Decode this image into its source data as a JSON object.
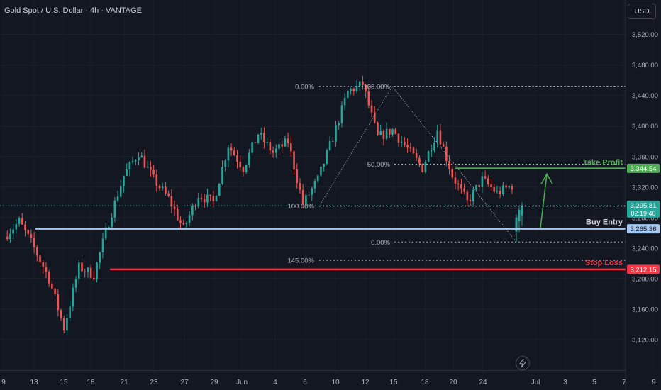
{
  "header": {
    "symbol_title": "Gold Spot / U.S. Dollar · 4h · VANTAGE",
    "currency_label": "USD"
  },
  "colors": {
    "background": "#131722",
    "up": "#26a69a",
    "down": "#ef5350",
    "take_profit": "#4caf50",
    "stop_loss": "#f23645",
    "buy_entry": "#a6c8f0",
    "fib": "#b2b5be"
  },
  "icons": {
    "replay": "lightning-icon"
  },
  "chart_data": {
    "type": "candlestick",
    "y_axis": {
      "range": [
        3080,
        3555
      ],
      "ticks": [
        "3,120.00",
        "3,160.00",
        "3,200.00",
        "3,240.00",
        "3,280.00",
        "3,320.00",
        "3,360.00",
        "3,400.00",
        "3,440.00",
        "3,480.00",
        "3,520.00"
      ]
    },
    "x_axis": {
      "ticks": [
        "9",
        "13",
        "15",
        "18",
        "21",
        "23",
        "27",
        "29",
        "Jun",
        "4",
        "6",
        "10",
        "12",
        "15",
        "18",
        "20",
        "24",
        "Jul",
        "3",
        "5",
        "7",
        "9"
      ]
    },
    "price_levels": {
      "current": {
        "value": 3295.81,
        "label": "3,295.81",
        "countdown": "02:19:40"
      },
      "take_profit": {
        "value": 3344.54,
        "label": "3,344.54",
        "text": "Take Profit"
      },
      "buy_entry": {
        "value": 3265.36,
        "label": "3,265.36",
        "text": "Buy Entry"
      },
      "stop_loss": {
        "value": 3212.15,
        "label": "3,212.15",
        "text": "Stop Loss"
      }
    },
    "fib_left": [
      {
        "label": "0.00%",
        "value": 3452
      },
      {
        "label": "100.00%",
        "value": 3295
      },
      {
        "label": "145.00%",
        "value": 3224
      }
    ],
    "fib_right": [
      {
        "label": "100.00%",
        "value": 3452
      },
      {
        "label": "50.00%",
        "value": 3350
      },
      {
        "label": "0.00%",
        "value": 3248
      }
    ],
    "anchor_points": [
      3255,
      3275,
      3240,
      3200,
      3135,
      3215,
      3205,
      3275,
      3335,
      3365,
      3330,
      3305,
      3265,
      3310,
      3300,
      3375,
      3345,
      3390,
      3365,
      3380,
      3298,
      3330,
      3385,
      3445,
      3455,
      3385,
      3395,
      3370,
      3345,
      3395,
      3335,
      3300,
      3330,
      3312,
      3322
    ]
  }
}
